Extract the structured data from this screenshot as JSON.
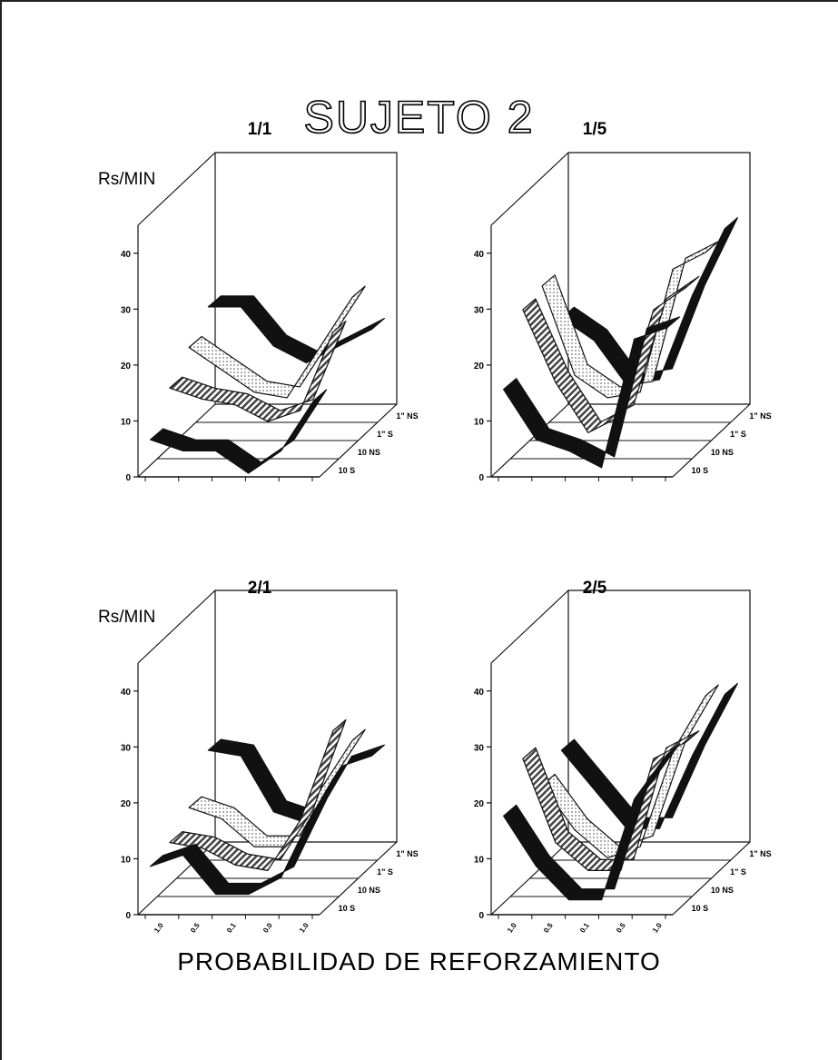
{
  "title": "SUJETO 2",
  "xlabel": "PROBABILIDAD DE REFORZAMIENTO",
  "depth_labels": [
    "1\" NS",
    "1\" S",
    "10 NS",
    "10 S"
  ],
  "colors": {
    "ink": "#111111",
    "dark": "#111111",
    "light": "#ffffff",
    "dots": "#c9c9c9",
    "hatch": "#666666"
  },
  "chart_data": [
    {
      "type": "line",
      "title": "1/1",
      "ylabel": "Rs/MIN",
      "yticks": [
        0,
        10,
        20,
        30,
        40
      ],
      "ylim": [
        0,
        45
      ],
      "xticks": [],
      "depth_labels": [
        "1\" NS",
        "1\" S",
        "10 NS",
        "10 S"
      ],
      "series": [
        {
          "name": "10 S",
          "values": [
            6,
            4,
            4,
            0,
            4,
            13
          ]
        },
        {
          "name": "10 NS",
          "values": [
            12,
            10,
            9,
            6,
            8,
            22
          ]
        },
        {
          "name": "1\" S",
          "values": [
            16,
            12,
            8,
            7,
            16,
            25
          ]
        },
        {
          "name": "1\" NS",
          "values": [
            20,
            20,
            13,
            10,
            13,
            16
          ]
        }
      ]
    },
    {
      "type": "line",
      "title": "1/5",
      "ylabel": "",
      "yticks": [
        0,
        10,
        20,
        30,
        40
      ],
      "ylim": [
        0,
        45
      ],
      "xticks": [],
      "depth_labels": [
        "1\" NS",
        "1\" S",
        "10 NS",
        "10 S"
      ],
      "series": [
        {
          "name": "10 S",
          "values": [
            15,
            6,
            4,
            1,
            24,
            26
          ]
        },
        {
          "name": "10 NS",
          "values": [
            26,
            13,
            4,
            7,
            26,
            30
          ]
        },
        {
          "name": "1\" S",
          "values": [
            27,
            11,
            7,
            8,
            30,
            33
          ]
        },
        {
          "name": "1\" NS",
          "values": [
            18,
            14,
            6,
            7,
            22,
            34
          ]
        }
      ]
    },
    {
      "type": "line",
      "title": "2/1",
      "ylabel": "Rs/MIN",
      "yticks": [
        0,
        10,
        20,
        30,
        40
      ],
      "ylim": [
        0,
        45
      ],
      "xticks": [
        "1.0",
        "0.5",
        "0.1",
        "0.0",
        "1.0"
      ],
      "depth_labels": [
        "1\" NS",
        "1\" S",
        "10 NS",
        "10 S"
      ],
      "series": [
        {
          "name": "10 S",
          "values": [
            8,
            10,
            3,
            3,
            6,
            18
          ]
        },
        {
          "name": "10 NS",
          "values": [
            9,
            8,
            5,
            4,
            13,
            29
          ]
        },
        {
          "name": "1\" S",
          "values": [
            12,
            10,
            5,
            5,
            15,
            24
          ]
        },
        {
          "name": "1\" NS",
          "values": [
            19,
            18,
            8,
            6,
            16,
            18
          ]
        }
      ]
    },
    {
      "type": "line",
      "title": "2/5",
      "ylabel": "",
      "yticks": [
        0,
        10,
        20,
        30,
        40
      ],
      "ylim": [
        0,
        45
      ],
      "xticks": [
        "1.0",
        "0.5",
        "0.1",
        "0.5",
        "1.0"
      ],
      "depth_labels": [
        "1\" NS",
        "1\" S",
        "10 NS",
        "10 S"
      ],
      "series": [
        {
          "name": "10 S",
          "values": [
            17,
            8,
            2,
            2,
            20,
            28
          ]
        },
        {
          "name": "10 NS",
          "values": [
            24,
            9,
            4,
            4,
            24,
            27
          ]
        },
        {
          "name": "1\" S",
          "values": [
            16,
            8,
            3,
            5,
            22,
            32
          ]
        },
        {
          "name": "1\" NS",
          "values": [
            19,
            12,
            5,
            5,
            18,
            29
          ]
        }
      ]
    }
  ]
}
